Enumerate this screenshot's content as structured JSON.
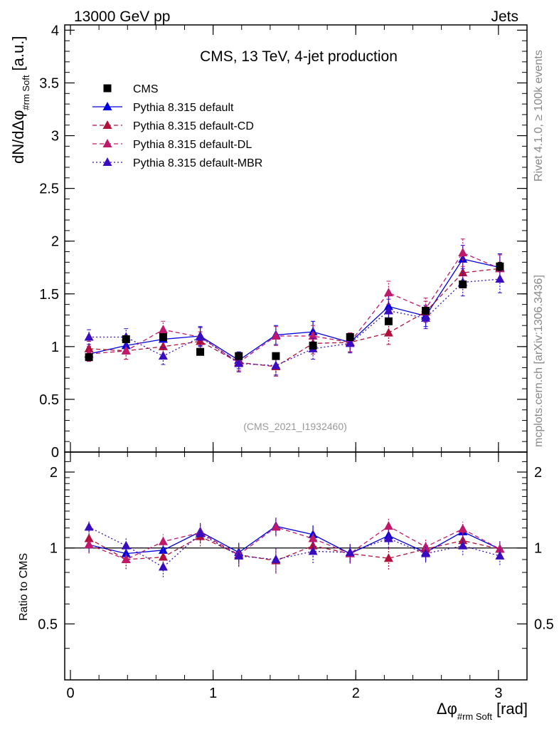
{
  "header": {
    "left": "13000 GeV pp",
    "right": "Jets"
  },
  "side_labels": {
    "rivet": "Rivet 4.1.0, ≥ 100k events",
    "mcplots": "mcplots.cern.ch [arXiv:1306.3436]"
  },
  "chart_data": {
    "type": "scatter",
    "title": "CMS, 13 TeV, 4-jet production",
    "analysis_id": "(CMS_2021_I1932460)",
    "ylabel_main": "dN/dΔφ",
    "ylabel_main_sub": "#rm Soft",
    "ylabel_main_unit": "[a.u.]",
    "ylabel_ratio": "Ratio to CMS",
    "xlabel": "Δφ",
    "xlabel_sub": "#rm Soft",
    "xlabel_unit": "[rad]",
    "xlim": [
      -0.04,
      3.2
    ],
    "ylim_main": [
      0,
      4.05
    ],
    "ylim_ratio": [
      0.3,
      2.4
    ],
    "xticks": [
      "0",
      "1",
      "2",
      "3"
    ],
    "yticks_main": [
      "0",
      "0.5",
      "1",
      "1.5",
      "2",
      "2.5",
      "3",
      "3.5",
      "4"
    ],
    "yticks_ratio": [
      "0.5",
      "1",
      "2"
    ],
    "x": [
      0.13,
      0.39,
      0.65,
      0.91,
      1.18,
      1.44,
      1.7,
      1.96,
      2.23,
      2.49,
      2.75,
      3.01
    ],
    "series": [
      {
        "name": "CMS",
        "color": "#000000",
        "style": "data",
        "values": [
          0.9,
          1.07,
          1.09,
          0.95,
          0.91,
          0.91,
          1.01,
          1.09,
          1.24,
          1.34,
          1.59,
          1.76
        ],
        "errors": [
          0.03,
          0.02,
          0.02,
          0.02,
          0.02,
          0.02,
          0.02,
          0.02,
          0.02,
          0.02,
          0.03,
          0.04
        ],
        "ratio": [
          1.0,
          1.0,
          1.0,
          1.0,
          1.0,
          1.0,
          1.0,
          1.0,
          1.0,
          1.0,
          1.0,
          1.0
        ]
      },
      {
        "name": "Pythia 8.315 default",
        "color": "#0000e0",
        "style": "solid",
        "values": [
          0.93,
          1.01,
          1.07,
          1.1,
          0.87,
          1.11,
          1.14,
          1.04,
          1.38,
          1.29,
          1.83,
          1.75
        ],
        "errors": [
          0.07,
          0.08,
          0.08,
          0.09,
          0.08,
          0.09,
          0.1,
          0.09,
          0.11,
          0.1,
          0.13,
          0.13
        ],
        "ratio": [
          1.03,
          0.95,
          0.98,
          1.16,
          0.96,
          1.22,
          1.13,
          0.95,
          1.12,
          0.96,
          1.16,
          0.99
        ]
      },
      {
        "name": "Pythia 8.315 default-CD",
        "color": "#b0103a",
        "style": "dashed",
        "values": [
          0.98,
          0.96,
          1.0,
          1.05,
          0.85,
          0.81,
          1.03,
          1.04,
          1.13,
          1.33,
          1.7,
          1.74
        ],
        "errors": [
          0.07,
          0.08,
          0.08,
          0.09,
          0.08,
          0.09,
          0.1,
          0.09,
          0.11,
          0.1,
          0.13,
          0.13
        ],
        "ratio": [
          1.09,
          0.9,
          0.92,
          1.11,
          0.94,
          0.89,
          1.02,
          0.95,
          0.91,
          0.99,
          1.07,
          0.99
        ]
      },
      {
        "name": "Pythia 8.315 default-DL",
        "color": "#c0186a",
        "style": "dashed",
        "values": [
          0.93,
          0.96,
          1.16,
          1.09,
          0.85,
          1.1,
          1.1,
          1.04,
          1.51,
          1.36,
          1.89,
          1.74
        ],
        "errors": [
          0.07,
          0.08,
          0.08,
          0.09,
          0.08,
          0.09,
          0.1,
          0.09,
          0.11,
          0.1,
          0.13,
          0.13
        ],
        "ratio": [
          1.03,
          0.9,
          1.06,
          1.15,
          0.94,
          1.21,
          1.09,
          0.95,
          1.22,
          1.01,
          1.19,
          0.99
        ]
      },
      {
        "name": "Pythia 8.315 default-MBR",
        "color": "#3a0cc0",
        "style": "dotted",
        "values": [
          1.09,
          1.09,
          0.91,
          1.09,
          0.84,
          0.82,
          0.98,
          1.03,
          1.34,
          1.27,
          1.61,
          1.64
        ],
        "errors": [
          0.07,
          0.08,
          0.08,
          0.09,
          0.08,
          0.09,
          0.1,
          0.09,
          0.11,
          0.1,
          0.13,
          0.13
        ],
        "ratio": [
          1.21,
          1.02,
          0.84,
          1.14,
          0.93,
          0.9,
          0.97,
          0.96,
          1.09,
          0.95,
          1.02,
          0.93
        ]
      }
    ]
  }
}
